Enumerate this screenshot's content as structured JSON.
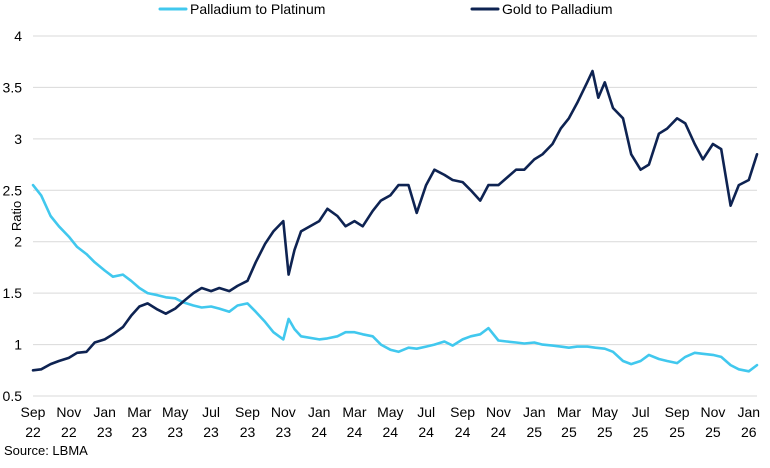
{
  "chart_data": {
    "type": "line",
    "title": "",
    "xlabel": "",
    "ylabel": "Ratio",
    "ylim": [
      0.5,
      4
    ],
    "yticks": [
      "0.5",
      "1",
      "1.5",
      "2",
      "2.5",
      "3",
      "3.5",
      "4"
    ],
    "grid": true,
    "legend_position": "top",
    "x_range": [
      "2022-09-01",
      "2026-01-15"
    ],
    "x_ticks": [
      {
        "month": "Sep",
        "year": "22",
        "date": "2022-09-01"
      },
      {
        "month": "Nov",
        "year": "22",
        "date": "2022-11-01"
      },
      {
        "month": "Jan",
        "year": "23",
        "date": "2023-01-01"
      },
      {
        "month": "Mar",
        "year": "23",
        "date": "2023-03-01"
      },
      {
        "month": "May",
        "year": "23",
        "date": "2023-05-01"
      },
      {
        "month": "Jul",
        "year": "23",
        "date": "2023-07-01"
      },
      {
        "month": "Sep",
        "year": "23",
        "date": "2023-09-01"
      },
      {
        "month": "Nov",
        "year": "23",
        "date": "2023-11-01"
      },
      {
        "month": "Jan",
        "year": "24",
        "date": "2024-01-01"
      },
      {
        "month": "Mar",
        "year": "24",
        "date": "2024-03-01"
      },
      {
        "month": "May",
        "year": "24",
        "date": "2024-05-01"
      },
      {
        "month": "Jul",
        "year": "24",
        "date": "2024-07-01"
      },
      {
        "month": "Sep",
        "year": "24",
        "date": "2024-09-01"
      },
      {
        "month": "Nov",
        "year": "24",
        "date": "2024-11-01"
      },
      {
        "month": "Jan",
        "year": "25",
        "date": "2025-01-01"
      },
      {
        "month": "Mar",
        "year": "25",
        "date": "2025-03-01"
      },
      {
        "month": "May",
        "year": "25",
        "date": "2025-05-01"
      },
      {
        "month": "Jul",
        "year": "25",
        "date": "2025-07-01"
      },
      {
        "month": "Sep",
        "year": "25",
        "date": "2025-09-01"
      },
      {
        "month": "Nov",
        "year": "25",
        "date": "2025-11-01"
      },
      {
        "month": "Jan",
        "year": "26",
        "date": "2026-01-01"
      }
    ],
    "series": [
      {
        "name": "Palladium to Platinum",
        "color": "#41c8ee",
        "points": [
          [
            "2022-09-01",
            2.55
          ],
          [
            "2022-09-15",
            2.45
          ],
          [
            "2022-10-01",
            2.25
          ],
          [
            "2022-10-15",
            2.15
          ],
          [
            "2022-11-01",
            2.05
          ],
          [
            "2022-11-15",
            1.95
          ],
          [
            "2022-12-01",
            1.88
          ],
          [
            "2022-12-15",
            1.8
          ],
          [
            "2023-01-01",
            1.72
          ],
          [
            "2023-01-15",
            1.66
          ],
          [
            "2023-02-01",
            1.68
          ],
          [
            "2023-02-15",
            1.62
          ],
          [
            "2023-03-01",
            1.55
          ],
          [
            "2023-03-15",
            1.5
          ],
          [
            "2023-04-01",
            1.48
          ],
          [
            "2023-04-15",
            1.46
          ],
          [
            "2023-05-01",
            1.45
          ],
          [
            "2023-05-15",
            1.41
          ],
          [
            "2023-06-01",
            1.38
          ],
          [
            "2023-06-15",
            1.36
          ],
          [
            "2023-07-01",
            1.37
          ],
          [
            "2023-07-15",
            1.35
          ],
          [
            "2023-08-01",
            1.32
          ],
          [
            "2023-08-15",
            1.38
          ],
          [
            "2023-09-01",
            1.4
          ],
          [
            "2023-09-15",
            1.32
          ],
          [
            "2023-10-01",
            1.22
          ],
          [
            "2023-10-15",
            1.12
          ],
          [
            "2023-11-01",
            1.05
          ],
          [
            "2023-11-10",
            1.25
          ],
          [
            "2023-11-20",
            1.15
          ],
          [
            "2023-12-01",
            1.08
          ],
          [
            "2024-01-01",
            1.05
          ],
          [
            "2024-01-15",
            1.06
          ],
          [
            "2024-02-01",
            1.08
          ],
          [
            "2024-02-15",
            1.12
          ],
          [
            "2024-03-01",
            1.12
          ],
          [
            "2024-03-15",
            1.1
          ],
          [
            "2024-04-01",
            1.08
          ],
          [
            "2024-04-15",
            1.0
          ],
          [
            "2024-05-01",
            0.95
          ],
          [
            "2024-05-15",
            0.93
          ],
          [
            "2024-06-01",
            0.97
          ],
          [
            "2024-06-15",
            0.96
          ],
          [
            "2024-07-01",
            0.98
          ],
          [
            "2024-07-15",
            1.0
          ],
          [
            "2024-08-01",
            1.03
          ],
          [
            "2024-08-15",
            0.99
          ],
          [
            "2024-09-01",
            1.05
          ],
          [
            "2024-09-15",
            1.08
          ],
          [
            "2024-10-01",
            1.1
          ],
          [
            "2024-10-15",
            1.16
          ],
          [
            "2024-11-01",
            1.04
          ],
          [
            "2024-11-15",
            1.03
          ],
          [
            "2024-12-01",
            1.02
          ],
          [
            "2024-12-15",
            1.01
          ],
          [
            "2025-01-01",
            1.02
          ],
          [
            "2025-01-15",
            1.0
          ],
          [
            "2025-02-01",
            0.99
          ],
          [
            "2025-02-15",
            0.98
          ],
          [
            "2025-03-01",
            0.97
          ],
          [
            "2025-03-15",
            0.98
          ],
          [
            "2025-04-01",
            0.98
          ],
          [
            "2025-04-15",
            0.97
          ],
          [
            "2025-05-01",
            0.96
          ],
          [
            "2025-05-15",
            0.93
          ],
          [
            "2025-06-01",
            0.84
          ],
          [
            "2025-06-15",
            0.81
          ],
          [
            "2025-07-01",
            0.84
          ],
          [
            "2025-07-15",
            0.9
          ],
          [
            "2025-08-01",
            0.86
          ],
          [
            "2025-08-15",
            0.84
          ],
          [
            "2025-09-01",
            0.82
          ],
          [
            "2025-09-15",
            0.88
          ],
          [
            "2025-10-01",
            0.92
          ],
          [
            "2025-10-15",
            0.91
          ],
          [
            "2025-11-01",
            0.9
          ],
          [
            "2025-11-15",
            0.88
          ],
          [
            "2025-12-01",
            0.8
          ],
          [
            "2025-12-15",
            0.76
          ],
          [
            "2026-01-01",
            0.74
          ],
          [
            "2026-01-15",
            0.8
          ]
        ]
      },
      {
        "name": "Gold to Palladium",
        "color": "#0e2352",
        "points": [
          [
            "2022-09-01",
            0.75
          ],
          [
            "2022-09-15",
            0.76
          ],
          [
            "2022-10-01",
            0.81
          ],
          [
            "2022-10-15",
            0.84
          ],
          [
            "2022-11-01",
            0.87
          ],
          [
            "2022-11-15",
            0.92
          ],
          [
            "2022-12-01",
            0.93
          ],
          [
            "2022-12-15",
            1.02
          ],
          [
            "2023-01-01",
            1.05
          ],
          [
            "2023-01-15",
            1.1
          ],
          [
            "2023-02-01",
            1.17
          ],
          [
            "2023-02-15",
            1.28
          ],
          [
            "2023-03-01",
            1.37
          ],
          [
            "2023-03-15",
            1.4
          ],
          [
            "2023-04-01",
            1.34
          ],
          [
            "2023-04-15",
            1.3
          ],
          [
            "2023-05-01",
            1.35
          ],
          [
            "2023-05-15",
            1.42
          ],
          [
            "2023-06-01",
            1.5
          ],
          [
            "2023-06-15",
            1.55
          ],
          [
            "2023-07-01",
            1.52
          ],
          [
            "2023-07-15",
            1.55
          ],
          [
            "2023-08-01",
            1.52
          ],
          [
            "2023-08-15",
            1.57
          ],
          [
            "2023-09-01",
            1.62
          ],
          [
            "2023-09-15",
            1.8
          ],
          [
            "2023-10-01",
            1.98
          ],
          [
            "2023-10-15",
            2.1
          ],
          [
            "2023-11-01",
            2.2
          ],
          [
            "2023-11-10",
            1.68
          ],
          [
            "2023-11-20",
            1.92
          ],
          [
            "2023-12-01",
            2.1
          ],
          [
            "2024-01-01",
            2.2
          ],
          [
            "2024-01-15",
            2.32
          ],
          [
            "2024-02-01",
            2.25
          ],
          [
            "2024-02-15",
            2.15
          ],
          [
            "2024-03-01",
            2.2
          ],
          [
            "2024-03-15",
            2.15
          ],
          [
            "2024-04-01",
            2.3
          ],
          [
            "2024-04-15",
            2.4
          ],
          [
            "2024-05-01",
            2.45
          ],
          [
            "2024-05-15",
            2.55
          ],
          [
            "2024-06-01",
            2.55
          ],
          [
            "2024-06-15",
            2.28
          ],
          [
            "2024-07-01",
            2.55
          ],
          [
            "2024-07-15",
            2.7
          ],
          [
            "2024-08-01",
            2.65
          ],
          [
            "2024-08-15",
            2.6
          ],
          [
            "2024-09-01",
            2.58
          ],
          [
            "2024-09-15",
            2.5
          ],
          [
            "2024-10-01",
            2.4
          ],
          [
            "2024-10-15",
            2.55
          ],
          [
            "2024-11-01",
            2.55
          ],
          [
            "2024-11-15",
            2.62
          ],
          [
            "2024-12-01",
            2.7
          ],
          [
            "2024-12-15",
            2.7
          ],
          [
            "2025-01-01",
            2.8
          ],
          [
            "2025-01-15",
            2.85
          ],
          [
            "2025-02-01",
            2.95
          ],
          [
            "2025-02-15",
            3.1
          ],
          [
            "2025-03-01",
            3.2
          ],
          [
            "2025-03-15",
            3.35
          ],
          [
            "2025-04-01",
            3.55
          ],
          [
            "2025-04-10",
            3.66
          ],
          [
            "2025-04-20",
            3.4
          ],
          [
            "2025-05-01",
            3.55
          ],
          [
            "2025-05-15",
            3.3
          ],
          [
            "2025-06-01",
            3.2
          ],
          [
            "2025-06-15",
            2.85
          ],
          [
            "2025-07-01",
            2.7
          ],
          [
            "2025-07-15",
            2.75
          ],
          [
            "2025-08-01",
            3.05
          ],
          [
            "2025-08-15",
            3.1
          ],
          [
            "2025-09-01",
            3.2
          ],
          [
            "2025-09-15",
            3.15
          ],
          [
            "2025-10-01",
            2.95
          ],
          [
            "2025-10-15",
            2.8
          ],
          [
            "2025-11-01",
            2.95
          ],
          [
            "2025-11-15",
            2.9
          ],
          [
            "2025-12-01",
            2.35
          ],
          [
            "2025-12-15",
            2.55
          ],
          [
            "2026-01-01",
            2.6
          ],
          [
            "2026-01-15",
            2.85
          ]
        ]
      }
    ]
  },
  "source_label": "Source: LBMA"
}
